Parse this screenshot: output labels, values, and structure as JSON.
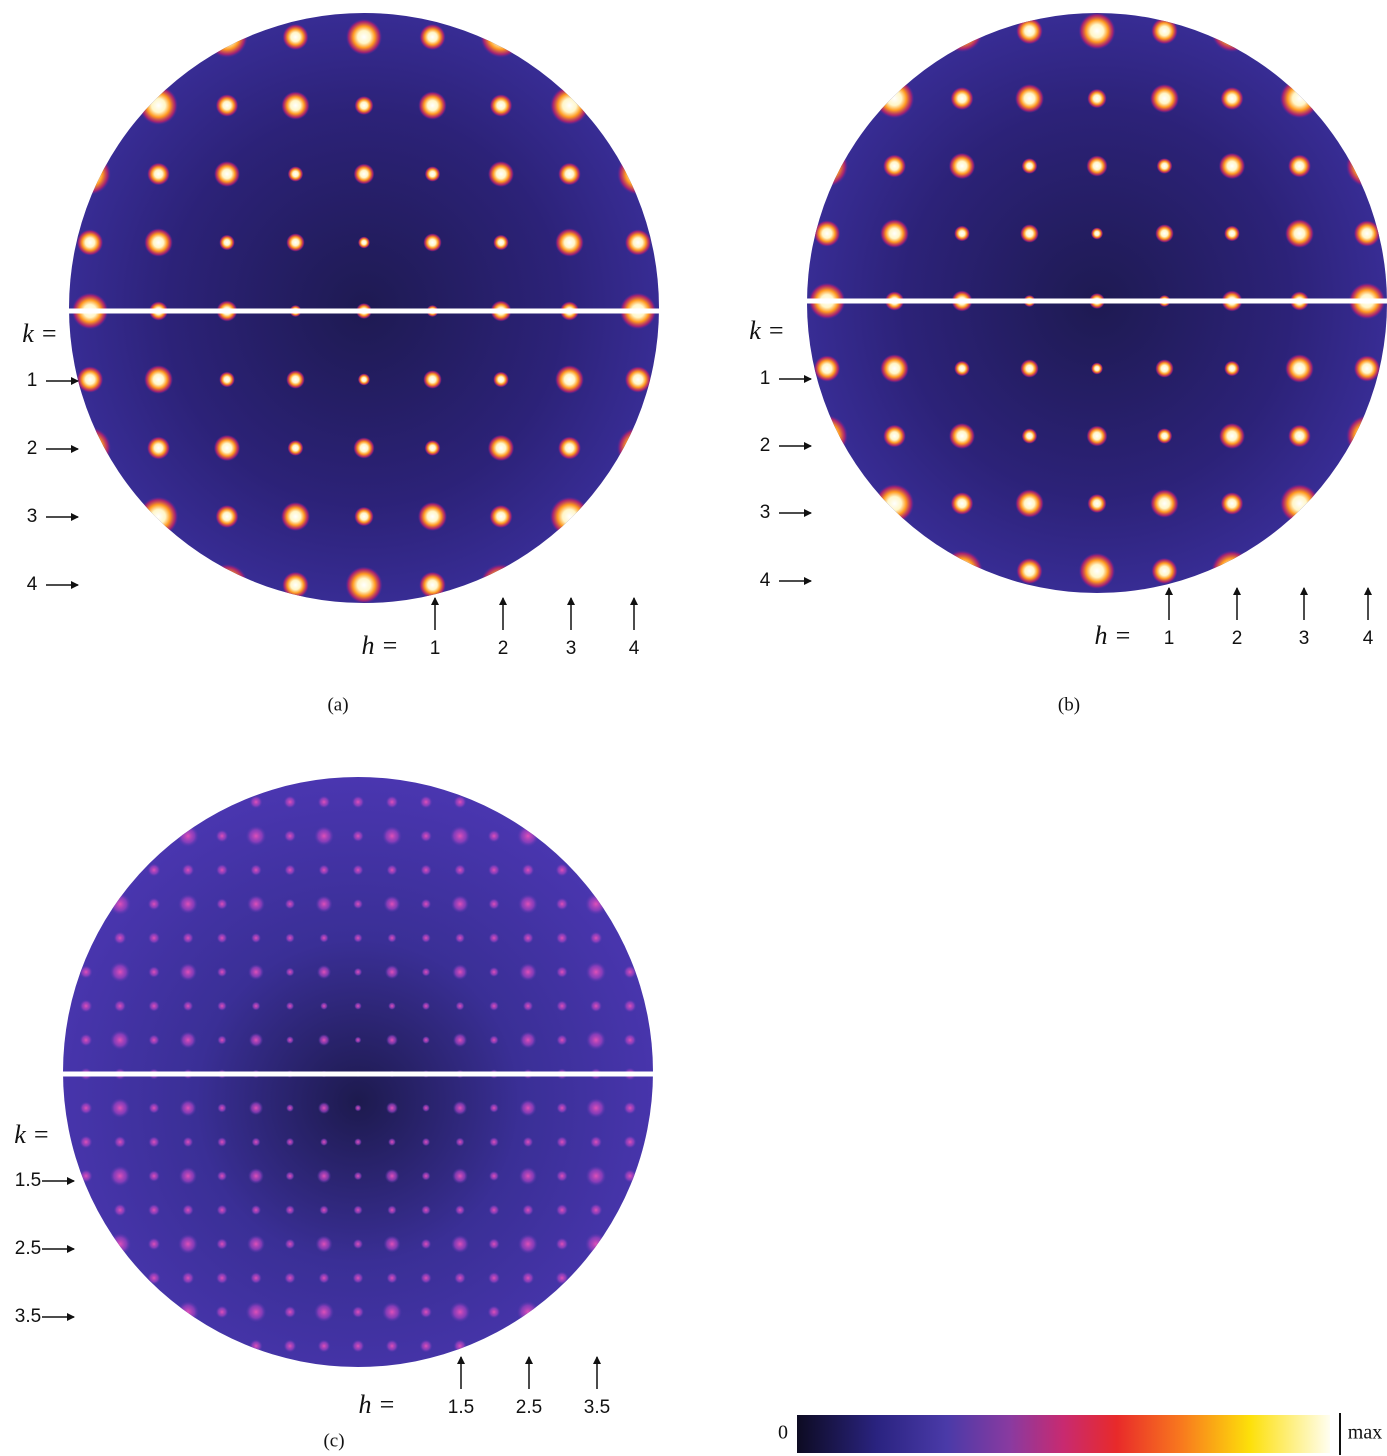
{
  "panels": [
    {
      "caption": "(a)",
      "k_label": "k =",
      "h_label": "h =",
      "k_ticks": [
        "1",
        "2",
        "3",
        "4"
      ],
      "h_ticks": [
        "1",
        "2",
        "3",
        "4"
      ]
    },
    {
      "caption": "(b)",
      "k_label": "k =",
      "h_label": "h =",
      "k_ticks": [
        "1",
        "2",
        "3",
        "4"
      ],
      "h_ticks": [
        "1",
        "2",
        "3",
        "4"
      ]
    },
    {
      "caption": "(c)",
      "k_label": "k =",
      "h_label": "h =",
      "k_ticks": [
        "1.5",
        "2.5",
        "3.5"
      ],
      "h_ticks": [
        "1.5",
        "2.5",
        "3.5"
      ]
    }
  ],
  "colorbar": {
    "min_label": "0",
    "max_label": "max"
  }
}
